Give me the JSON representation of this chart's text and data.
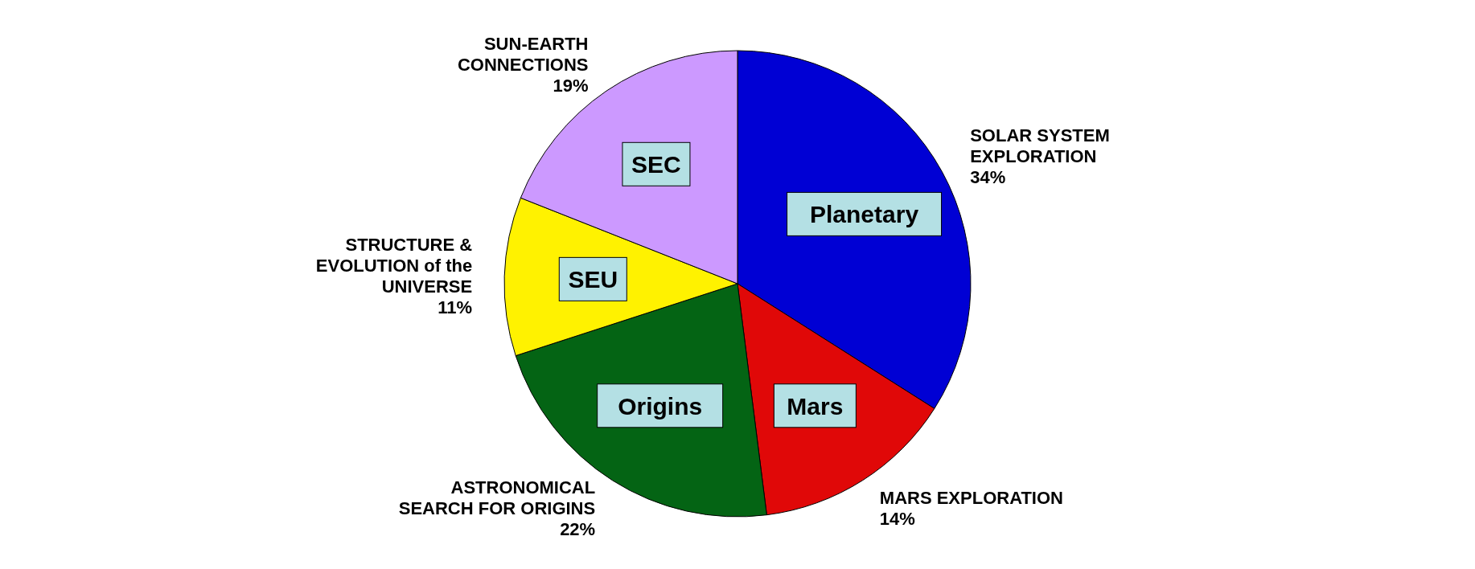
{
  "chart_data": {
    "type": "pie",
    "categories": [
      "SOLAR SYSTEM EXPLORATION",
      "MARS EXPLORATION",
      "ASTRONOMICAL SEARCH FOR ORIGINS",
      "STRUCTURE & EVOLUTION of the UNIVERSE",
      "SUN-EARTH CONNECTIONS"
    ],
    "values": [
      34,
      14,
      22,
      11,
      19
    ],
    "value_labels": [
      "34%",
      "14%",
      "22%",
      "11%",
      "19%"
    ],
    "colors": [
      "#0000d4",
      "#e00808",
      "#046414",
      "#fff200",
      "#cc99ff"
    ],
    "annotations": [
      "Planetary",
      "Mars",
      "Origins",
      "SEU",
      "SEC"
    ]
  }
}
